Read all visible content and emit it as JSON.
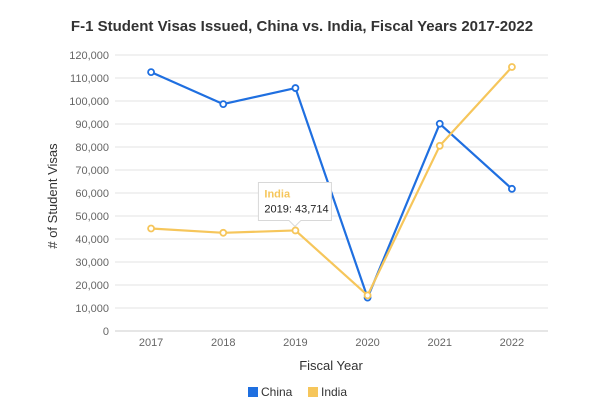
{
  "chart_data": {
    "type": "line",
    "title": "F-1 Student Visas Issued, China vs. India, Fiscal Years 2017-2022",
    "xlabel": "Fiscal Year",
    "ylabel": "# of Student Visas",
    "categories": [
      "2017",
      "2018",
      "2019",
      "2020",
      "2021",
      "2022"
    ],
    "ylim": [
      0,
      120000
    ],
    "y_ticks": [
      "0",
      "10,000",
      "20,000",
      "30,000",
      "40,000",
      "50,000",
      "60,000",
      "70,000",
      "80,000",
      "90,000",
      "100,000",
      "110,000",
      "120,000"
    ],
    "grid": true,
    "legend_position": "bottom-center",
    "series": [
      {
        "name": "China",
        "color": "#1f6fe0",
        "values": [
          112559,
          98654,
          105626,
          14500,
          90098,
          61810
        ]
      },
      {
        "name": "India",
        "color": "#f6c65b",
        "values": [
          44580,
          42695,
          43714,
          15500,
          80519,
          114773
        ]
      }
    ],
    "tooltip": {
      "series": "India",
      "text": "2019: 43,714",
      "category": "2019",
      "value": 43714
    }
  }
}
